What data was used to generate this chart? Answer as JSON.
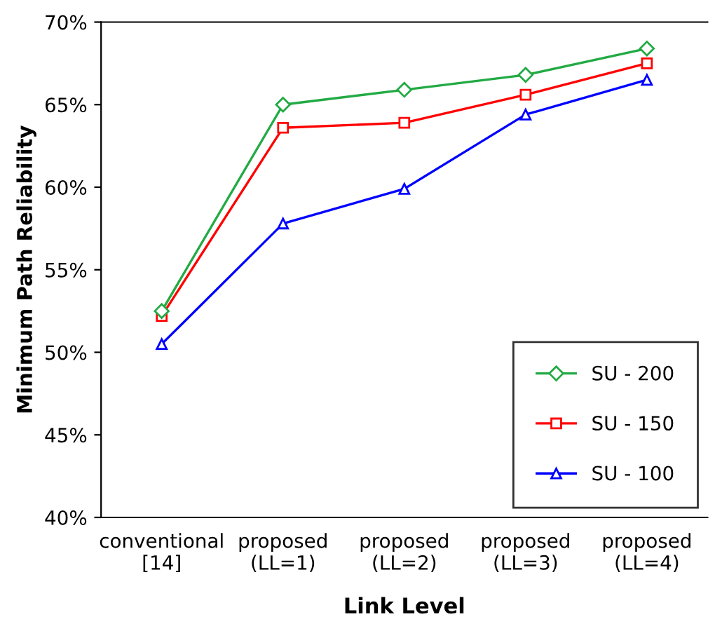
{
  "chart_data": {
    "type": "line",
    "xlabel": "Link Level",
    "ylabel": "Minimum Path Reliability",
    "categories": [
      "conventional\n[14]",
      "proposed\n(LL=1)",
      "proposed\n(LL=2)",
      "proposed\n(LL=3)",
      "proposed\n(LL=4)"
    ],
    "series": [
      {
        "name": "SU - 200",
        "color": "#22aa44",
        "marker": "diamond",
        "values": [
          52.5,
          65.0,
          65.9,
          66.8,
          68.4
        ]
      },
      {
        "name": "SU - 150",
        "color": "#ff0000",
        "marker": "square",
        "values": [
          52.2,
          63.6,
          63.9,
          65.6,
          67.5
        ]
      },
      {
        "name": "SU - 100",
        "color": "#0000ff",
        "marker": "triangle",
        "values": [
          50.5,
          57.8,
          59.9,
          64.4,
          66.5
        ]
      }
    ],
    "ylim": [
      40,
      70
    ],
    "yticks": [
      {
        "value": 40,
        "label": "40%"
      },
      {
        "value": 45,
        "label": "45%"
      },
      {
        "value": 50,
        "label": "50%"
      },
      {
        "value": 55,
        "label": "55%"
      },
      {
        "value": 60,
        "label": "60%"
      },
      {
        "value": 65,
        "label": "65%"
      },
      {
        "value": 70,
        "label": "70%"
      }
    ],
    "grid": false,
    "legend": "bottom right",
    "line_style": "solid"
  }
}
